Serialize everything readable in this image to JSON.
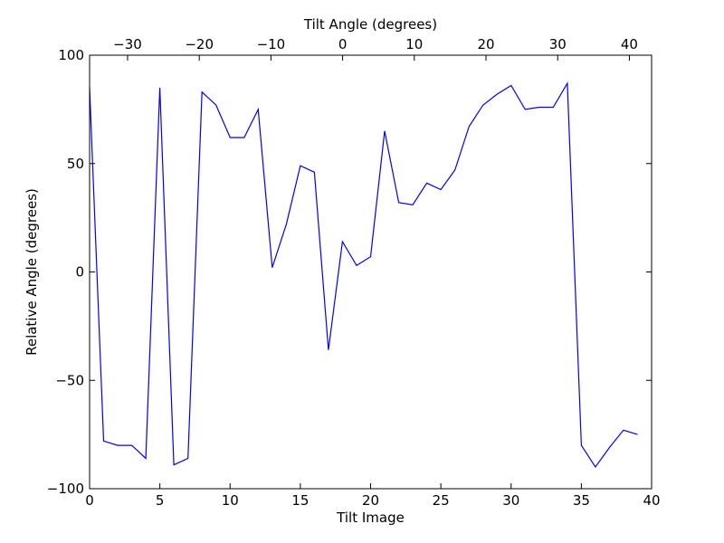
{
  "chart_data": {
    "type": "line",
    "title": "",
    "xlabel": "Tilt Image",
    "ylabel": "Relative Angle (degrees)",
    "top_xlabel": "Tilt Angle (degrees)",
    "xlim": [
      0,
      40
    ],
    "ylim": [
      -100,
      100
    ],
    "top_xlim": [
      -35.3,
      43.1
    ],
    "x_ticks": [
      0,
      5,
      10,
      15,
      20,
      25,
      30,
      35,
      40
    ],
    "x_tick_labels": [
      "0",
      "5",
      "10",
      "15",
      "20",
      "25",
      "30",
      "35",
      "40"
    ],
    "y_ticks": [
      -100,
      -50,
      0,
      50,
      100
    ],
    "y_tick_labels": [
      "−100",
      "−50",
      "0",
      "50",
      "100"
    ],
    "top_x_ticks": [
      -30,
      -20,
      -10,
      0,
      10,
      20,
      30,
      40
    ],
    "top_x_tick_labels": [
      "−30",
      "−20",
      "−10",
      "0",
      "10",
      "20",
      "30",
      "40"
    ],
    "grid": false,
    "legend": "none",
    "series": [
      {
        "color": "#0000ff",
        "x": [
          0,
          1,
          2,
          3,
          4,
          5,
          6,
          7,
          8,
          9,
          10,
          11,
          12,
          13,
          14,
          15,
          16,
          17,
          18,
          19,
          20,
          21,
          22,
          23,
          24,
          25,
          26,
          27,
          28,
          29,
          30,
          31,
          32,
          33,
          34,
          35,
          36,
          37,
          38,
          39
        ],
        "values": [
          85,
          -78,
          -80,
          -80,
          -86,
          85,
          -89,
          -86,
          83,
          77,
          62,
          62,
          75,
          2,
          22,
          49,
          46,
          -36,
          14,
          3,
          7,
          65,
          32,
          31,
          41,
          38,
          47,
          67,
          77,
          82,
          86,
          75,
          76,
          76,
          87,
          -80,
          -90,
          -81,
          -73,
          -75
        ]
      }
    ]
  }
}
